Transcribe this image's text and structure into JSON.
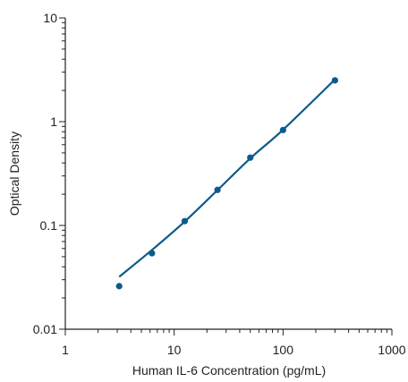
{
  "chart_data": {
    "type": "scatter",
    "xlabel": "Human IL-6 Concentration (pg/mL)",
    "ylabel": "Optical Density",
    "xscale": "log",
    "yscale": "log",
    "xlim": [
      1,
      1000
    ],
    "ylim": [
      0.01,
      10
    ],
    "xticks": [
      1,
      10,
      100,
      1000
    ],
    "xtick_labels": [
      "1",
      "10",
      "100",
      "1000"
    ],
    "yticks": [
      0.01,
      0.1,
      1,
      10
    ],
    "ytick_labels": [
      "0.01",
      "0.1",
      "1",
      "10"
    ],
    "grid": false,
    "color": "#0d5a8c",
    "points": {
      "x": [
        3.125,
        6.25,
        12.5,
        25,
        50,
        100,
        300
      ],
      "y": [
        0.026,
        0.054,
        0.11,
        0.22,
        0.45,
        0.83,
        2.5
      ]
    },
    "fit_curve": {
      "x": [
        3.125,
        6.25,
        12.5,
        25,
        50,
        100,
        300
      ],
      "y": [
        0.032,
        0.058,
        0.109,
        0.219,
        0.443,
        0.836,
        2.55
      ]
    }
  }
}
